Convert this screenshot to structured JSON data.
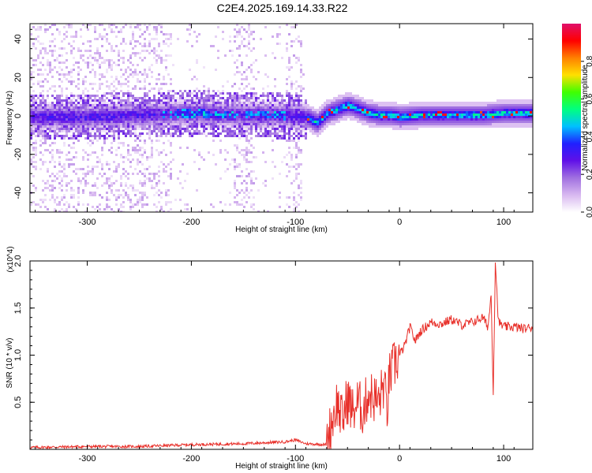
{
  "page": {
    "title": "C2E4.2025.169.14.33.R22"
  },
  "chart_data": [
    {
      "type": "heatmap",
      "title": "C2E4.2025.169.14.33.R22",
      "xlabel": "Height of straight line (km)",
      "ylabel": "Frequency (Hz)",
      "xlim": [
        -355,
        128
      ],
      "ylim": [
        -50,
        48
      ],
      "xticks": [
        -300,
        -200,
        -100,
        0,
        100
      ],
      "xtick_labels": [
        "-300",
        "-200",
        "-100",
        "0",
        "100"
      ],
      "yticks": [
        -40,
        -20,
        0,
        20,
        40
      ],
      "ytick_labels": [
        "-40",
        "-20",
        "0",
        "20",
        "40"
      ],
      "colorbar": {
        "label": "Normalized spectral amplitude",
        "range": [
          0.0,
          1.0
        ],
        "ticks": [
          0.0,
          0.2,
          0.4,
          0.6,
          0.8
        ],
        "tick_labels": [
          "0.0",
          "0.2",
          "0.4",
          "0.6",
          "0.8"
        ],
        "colormap": [
          "#ffffff",
          "#d8b8f0",
          "#a070e0",
          "#6010e8",
          "#2020ff",
          "#00c0ff",
          "#00ff80",
          "#40ff00",
          "#ffe000",
          "#ff8000",
          "#ff0000",
          "#e0106a"
        ]
      },
      "ridge": {
        "x": [
          -350,
          -300,
          -250,
          -200,
          -150,
          -120,
          -90,
          -80,
          -70,
          -60,
          -50,
          -40,
          -30,
          -20,
          -10,
          0,
          20,
          50,
          80,
          100,
          128
        ],
        "frequency": [
          0,
          0,
          1,
          2,
          1,
          1,
          0,
          -3,
          2,
          4,
          6,
          4,
          2,
          1,
          1,
          0,
          1,
          1,
          1,
          2,
          2
        ]
      },
      "grid": false
    },
    {
      "type": "line",
      "xlabel": "Height of straight line (km)",
      "ylabel": "SNR (10 * v/v)",
      "y_multiplier": "(x10^4)",
      "xlim": [
        -355,
        128
      ],
      "ylim": [
        0,
        2.0
      ],
      "xticks": [
        -300,
        -200,
        -100,
        0,
        100
      ],
      "xtick_labels": [
        "-300",
        "-200",
        "-100",
        "0",
        "100"
      ],
      "yticks": [
        0.5,
        1.0,
        1.5,
        2.0
      ],
      "ytick_labels": [
        "0.5",
        "1.0",
        "1.5",
        "2.0"
      ],
      "series": [
        {
          "color": "#e8302a",
          "x": [
            -355,
            -300,
            -250,
            -200,
            -150,
            -110,
            -100,
            -90,
            -70,
            -65,
            -60,
            -55,
            -50,
            -45,
            -40,
            -35,
            -30,
            -25,
            -20,
            -15,
            -12,
            -10,
            -5,
            0,
            5,
            10,
            15,
            20,
            25,
            30,
            40,
            50,
            60,
            70,
            80,
            85,
            88,
            90,
            92,
            95,
            100,
            110,
            120,
            128
          ],
          "values": [
            0.02,
            0.03,
            0.03,
            0.05,
            0.06,
            0.08,
            0.1,
            0.06,
            0.05,
            0.3,
            0.5,
            0.3,
            0.55,
            0.4,
            0.5,
            0.4,
            0.6,
            0.55,
            0.5,
            0.7,
            0.4,
            0.75,
            0.9,
            1.0,
            1.1,
            1.3,
            1.15,
            1.25,
            1.3,
            1.35,
            1.33,
            1.38,
            1.32,
            1.35,
            1.4,
            1.3,
            1.65,
            0.58,
            2.0,
            1.35,
            1.3,
            1.3,
            1.28,
            1.3
          ]
        }
      ],
      "grid": false
    }
  ]
}
